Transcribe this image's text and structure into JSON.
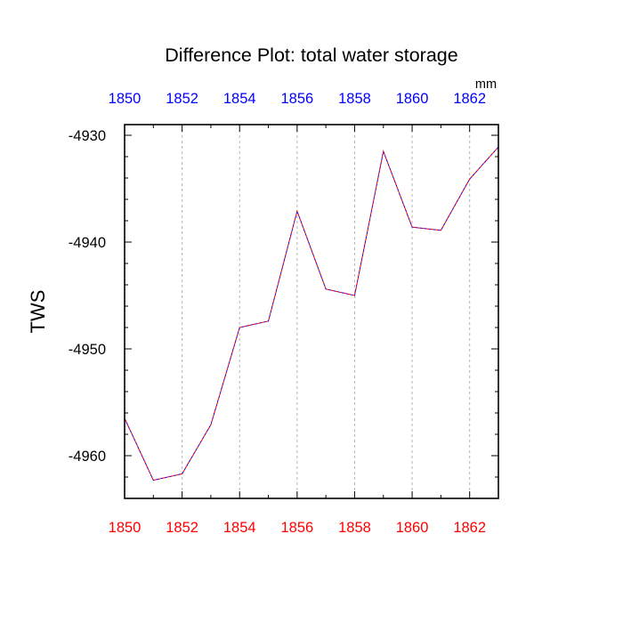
{
  "chart_data": {
    "type": "line",
    "title": "Difference Plot: total water storage",
    "units": "mm",
    "ylabel": "TWS",
    "xlabel": "",
    "xlim": [
      1850,
      1863
    ],
    "ylim": [
      -4964,
      -4929
    ],
    "grid": "vertical dashed",
    "x_ticks": [
      1850,
      1852,
      1854,
      1856,
      1858,
      1860,
      1862
    ],
    "y_ticks": [
      -4960,
      -4950,
      -4940,
      -4930
    ],
    "x": [
      1850,
      1851,
      1852,
      1853,
      1854,
      1855,
      1856,
      1857,
      1858,
      1859,
      1860,
      1861,
      1862,
      1863
    ],
    "series": [
      {
        "values": [
          -4956.5,
          -4962.3,
          -4961.7,
          -4957.1,
          -4948.0,
          -4947.4,
          -4937.1,
          -4944.4,
          -4945.0,
          -4931.5,
          -4938.6,
          -4938.9,
          -4934.1,
          -4931.1
        ],
        "colors": [
          "#0000ff",
          "#ff0000"
        ]
      }
    ],
    "colors": {
      "top_axis": "#0000ff",
      "bottom_axis": "#ff0000",
      "axis": "#000000",
      "grid": "#b4b4b4"
    }
  }
}
